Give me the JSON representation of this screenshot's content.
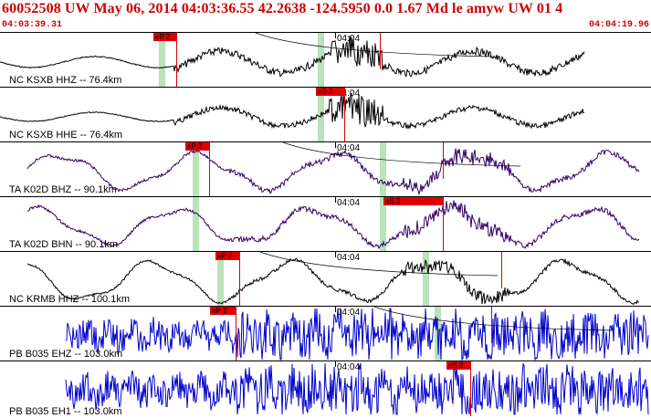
{
  "header": {
    "title": "60052508 UW May 06, 2014 04:03:36.55   42.2638 -124.5950  0.0 1.67 Md le amyw UW 01   4",
    "start_time": "04:03:39.31",
    "end_time": "04:04:19.96"
  },
  "time_mark": "04:04",
  "traces": [
    {
      "label": "NC KSXB HHZ -- 76.4km",
      "color": "#000000",
      "style": "lowfreq",
      "amp": 12,
      "noise": 4,
      "green": [
        174,
        348
      ],
      "picks": [
        {
          "text": "eP 2",
          "tag_x": 168,
          "line_x": 193
        },
        {
          "text": "",
          "tag_x": 0,
          "line_x": 416
        }
      ]
    },
    {
      "label": "NC KSXB HHE -- 76.4km",
      "color": "#000000",
      "style": "lowfreq",
      "amp": 10,
      "noise": 3,
      "green": [
        348
      ],
      "picks": [
        {
          "text": "eS 2",
          "tag_x": 346,
          "line_x": 377
        }
      ]
    },
    {
      "label": "TA K02D BHZ -- 90.1km",
      "color": "#330066",
      "style": "wave",
      "amp": 18,
      "noise": 3,
      "green": [
        211,
        416
      ],
      "picks": [
        {
          "text": "eP 2",
          "tag_x": 203,
          "line_x": 229
        },
        {
          "text": "",
          "tag_x": 0,
          "line_x": 485
        }
      ]
    },
    {
      "label": "TA K02D BHN -- 90.1km",
      "color": "#330066",
      "style": "wave",
      "amp": 18,
      "noise": 3,
      "green": [
        211,
        416
      ],
      "picks": [
        {
          "text": "eS 2",
          "tag_x": 420,
          "line_x": 485
        }
      ]
    },
    {
      "label": "NC KRMB HHZ -- 100.1km",
      "color": "#000000",
      "style": "wave",
      "amp": 20,
      "noise": 2,
      "green": [
        238,
        463
      ],
      "picks": [
        {
          "text": "eP 2",
          "tag_x": 236,
          "line_x": 262
        },
        {
          "text": "",
          "tag_x": 0,
          "line_x": 549
        }
      ]
    },
    {
      "label": "PB B035 EHZ -- 103.0km",
      "color": "#0000cc",
      "style": "hf",
      "amp": 16,
      "noise": 10,
      "green": [
        476
      ],
      "picks": [
        {
          "text": "eP 2",
          "tag_x": 230,
          "line_x": 258
        },
        {
          "text": "",
          "tag_x": 0,
          "line_x": 538
        }
      ]
    },
    {
      "label": "PB B035 EH1 -- 103.0km",
      "color": "#0000cc",
      "style": "hf",
      "amp": 16,
      "noise": 10,
      "green": [],
      "picks": [
        {
          "text": "eS 2",
          "tag_x": 489,
          "line_x": 515
        }
      ]
    }
  ]
}
